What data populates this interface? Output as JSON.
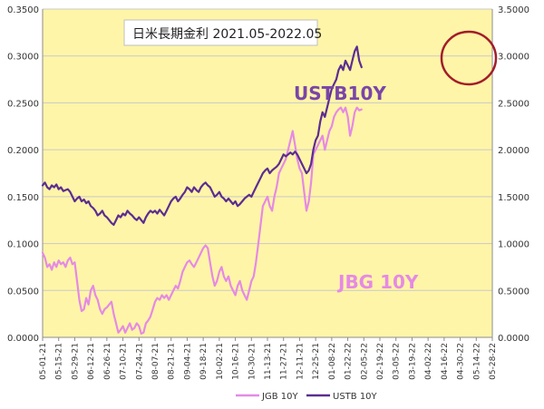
{
  "chart_data": {
    "type": "line",
    "title": "日米長期金利 2021.05-2022.05",
    "x_tick_labels": [
      "05-01-21",
      "05-15-21",
      "05-29-21",
      "06-12-21",
      "06-26-21",
      "07-10-21",
      "07-24-21",
      "08-07-21",
      "08-21-21",
      "09-04-21",
      "09-18-21",
      "10-02-21",
      "10-16-21",
      "10-30-21",
      "11-13-21",
      "11-27-21",
      "12-11-21",
      "12-25-21",
      "01-08-22",
      "01-22-22",
      "02-05-22",
      "02-19-22",
      "03-05-22",
      "03-19-22",
      "04-02-22",
      "04-16-22",
      "04-30-22",
      "05-14-22",
      "05-28-22"
    ],
    "y_left": {
      "range": [
        0,
        0.35
      ],
      "ticks": [
        "0.0000",
        "0.0500",
        "0.1000",
        "0.1500",
        "0.2000",
        "0.2500",
        "0.3000",
        "0.3500"
      ]
    },
    "y_right": {
      "range": [
        0,
        3.5
      ],
      "ticks": [
        "0.0000",
        "0.5000",
        "1.0000",
        "1.5000",
        "2.0000",
        "2.5000",
        "3.0000",
        "3.5000"
      ]
    },
    "grid": "horizontal",
    "legend": {
      "position": "bottom",
      "items": [
        "JGB 10Y",
        "USTB 10Y"
      ]
    },
    "annotations": [
      "USTB10Y",
      "JBG 10Y"
    ],
    "series": [
      {
        "name": "JGB 10Y",
        "axis": "left",
        "color": "#e58ae5",
        "points": [
          [
            0,
            0.09
          ],
          [
            2,
            0.085
          ],
          [
            4,
            0.075
          ],
          [
            6,
            0.078
          ],
          [
            8,
            0.072
          ],
          [
            10,
            0.08
          ],
          [
            12,
            0.075
          ],
          [
            14,
            0.082
          ],
          [
            16,
            0.078
          ],
          [
            18,
            0.08
          ],
          [
            20,
            0.075
          ],
          [
            22,
            0.082
          ],
          [
            24,
            0.085
          ],
          [
            26,
            0.078
          ],
          [
            28,
            0.08
          ],
          [
            30,
            0.06
          ],
          [
            32,
            0.04
          ],
          [
            34,
            0.028
          ],
          [
            36,
            0.03
          ],
          [
            38,
            0.042
          ],
          [
            40,
            0.035
          ],
          [
            42,
            0.05
          ],
          [
            44,
            0.055
          ],
          [
            46,
            0.045
          ],
          [
            48,
            0.04
          ],
          [
            50,
            0.03
          ],
          [
            52,
            0.025
          ],
          [
            54,
            0.03
          ],
          [
            56,
            0.032
          ],
          [
            58,
            0.035
          ],
          [
            60,
            0.038
          ],
          [
            62,
            0.025
          ],
          [
            64,
            0.015
          ],
          [
            66,
            0.005
          ],
          [
            68,
            0.008
          ],
          [
            70,
            0.012
          ],
          [
            72,
            0.005
          ],
          [
            74,
            0.01
          ],
          [
            76,
            0.015
          ],
          [
            78,
            0.008
          ],
          [
            80,
            0.01
          ],
          [
            82,
            0.015
          ],
          [
            84,
            0.012
          ],
          [
            86,
            0.004
          ],
          [
            88,
            0.005
          ],
          [
            90,
            0.015
          ],
          [
            92,
            0.018
          ],
          [
            94,
            0.022
          ],
          [
            96,
            0.03
          ],
          [
            98,
            0.038
          ],
          [
            100,
            0.042
          ],
          [
            102,
            0.04
          ],
          [
            104,
            0.045
          ],
          [
            106,
            0.042
          ],
          [
            108,
            0.045
          ],
          [
            110,
            0.04
          ],
          [
            112,
            0.045
          ],
          [
            114,
            0.05
          ],
          [
            116,
            0.055
          ],
          [
            118,
            0.052
          ],
          [
            120,
            0.06
          ],
          [
            122,
            0.07
          ],
          [
            124,
            0.075
          ],
          [
            126,
            0.08
          ],
          [
            128,
            0.082
          ],
          [
            130,
            0.078
          ],
          [
            132,
            0.075
          ],
          [
            134,
            0.08
          ],
          [
            136,
            0.085
          ],
          [
            138,
            0.09
          ],
          [
            140,
            0.095
          ],
          [
            142,
            0.098
          ],
          [
            144,
            0.095
          ],
          [
            146,
            0.08
          ],
          [
            148,
            0.065
          ],
          [
            150,
            0.055
          ],
          [
            152,
            0.06
          ],
          [
            154,
            0.07
          ],
          [
            156,
            0.075
          ],
          [
            158,
            0.065
          ],
          [
            160,
            0.06
          ],
          [
            162,
            0.065
          ],
          [
            164,
            0.055
          ],
          [
            166,
            0.05
          ],
          [
            168,
            0.045
          ],
          [
            170,
            0.055
          ],
          [
            172,
            0.06
          ],
          [
            174,
            0.05
          ],
          [
            176,
            0.045
          ],
          [
            178,
            0.04
          ],
          [
            180,
            0.05
          ],
          [
            182,
            0.06
          ],
          [
            184,
            0.065
          ],
          [
            186,
            0.08
          ],
          [
            188,
            0.1
          ],
          [
            190,
            0.12
          ],
          [
            192,
            0.14
          ],
          [
            194,
            0.145
          ],
          [
            196,
            0.15
          ],
          [
            198,
            0.14
          ],
          [
            200,
            0.135
          ],
          [
            202,
            0.15
          ],
          [
            204,
            0.16
          ],
          [
            206,
            0.175
          ],
          [
            208,
            0.18
          ],
          [
            210,
            0.185
          ],
          [
            212,
            0.19
          ],
          [
            214,
            0.2
          ],
          [
            216,
            0.21
          ],
          [
            218,
            0.22
          ],
          [
            220,
            0.205
          ],
          [
            222,
            0.19
          ],
          [
            224,
            0.18
          ],
          [
            226,
            0.175
          ],
          [
            228,
            0.155
          ],
          [
            230,
            0.135
          ],
          [
            232,
            0.145
          ],
          [
            234,
            0.165
          ],
          [
            236,
            0.195
          ],
          [
            238,
            0.2
          ],
          [
            240,
            0.205
          ],
          [
            242,
            0.21
          ],
          [
            244,
            0.215
          ],
          [
            246,
            0.2
          ],
          [
            248,
            0.21
          ],
          [
            250,
            0.22
          ],
          [
            252,
            0.225
          ],
          [
            254,
            0.235
          ],
          [
            256,
            0.24
          ],
          [
            258,
            0.243
          ],
          [
            260,
            0.245
          ],
          [
            262,
            0.24
          ],
          [
            264,
            0.245
          ],
          [
            266,
            0.235
          ],
          [
            268,
            0.215
          ],
          [
            270,
            0.225
          ],
          [
            272,
            0.24
          ],
          [
            274,
            0.245
          ],
          [
            276,
            0.242
          ],
          [
            278,
            0.243
          ]
        ]
      },
      {
        "name": "USTB 10Y",
        "axis": "right",
        "color": "#5c2d91",
        "points": [
          [
            0,
            1.62
          ],
          [
            2,
            1.65
          ],
          [
            4,
            1.6
          ],
          [
            6,
            1.58
          ],
          [
            8,
            1.62
          ],
          [
            10,
            1.6
          ],
          [
            12,
            1.63
          ],
          [
            14,
            1.58
          ],
          [
            16,
            1.6
          ],
          [
            18,
            1.56
          ],
          [
            20,
            1.57
          ],
          [
            22,
            1.58
          ],
          [
            24,
            1.55
          ],
          [
            26,
            1.5
          ],
          [
            28,
            1.45
          ],
          [
            30,
            1.48
          ],
          [
            32,
            1.5
          ],
          [
            34,
            1.45
          ],
          [
            36,
            1.47
          ],
          [
            38,
            1.43
          ],
          [
            40,
            1.45
          ],
          [
            42,
            1.4
          ],
          [
            44,
            1.38
          ],
          [
            46,
            1.35
          ],
          [
            48,
            1.3
          ],
          [
            50,
            1.32
          ],
          [
            52,
            1.35
          ],
          [
            54,
            1.3
          ],
          [
            56,
            1.28
          ],
          [
            58,
            1.25
          ],
          [
            60,
            1.22
          ],
          [
            62,
            1.2
          ],
          [
            64,
            1.25
          ],
          [
            66,
            1.3
          ],
          [
            68,
            1.28
          ],
          [
            70,
            1.32
          ],
          [
            72,
            1.3
          ],
          [
            74,
            1.35
          ],
          [
            76,
            1.32
          ],
          [
            78,
            1.3
          ],
          [
            80,
            1.27
          ],
          [
            82,
            1.25
          ],
          [
            84,
            1.28
          ],
          [
            86,
            1.25
          ],
          [
            88,
            1.22
          ],
          [
            90,
            1.28
          ],
          [
            92,
            1.32
          ],
          [
            94,
            1.35
          ],
          [
            96,
            1.33
          ],
          [
            98,
            1.35
          ],
          [
            100,
            1.32
          ],
          [
            102,
            1.36
          ],
          [
            104,
            1.33
          ],
          [
            106,
            1.3
          ],
          [
            108,
            1.35
          ],
          [
            110,
            1.4
          ],
          [
            112,
            1.45
          ],
          [
            114,
            1.48
          ],
          [
            116,
            1.5
          ],
          [
            118,
            1.45
          ],
          [
            120,
            1.48
          ],
          [
            122,
            1.52
          ],
          [
            124,
            1.55
          ],
          [
            126,
            1.6
          ],
          [
            128,
            1.58
          ],
          [
            130,
            1.55
          ],
          [
            132,
            1.6
          ],
          [
            134,
            1.57
          ],
          [
            136,
            1.55
          ],
          [
            138,
            1.6
          ],
          [
            140,
            1.63
          ],
          [
            142,
            1.65
          ],
          [
            144,
            1.62
          ],
          [
            146,
            1.6
          ],
          [
            148,
            1.55
          ],
          [
            150,
            1.5
          ],
          [
            152,
            1.52
          ],
          [
            154,
            1.55
          ],
          [
            156,
            1.5
          ],
          [
            158,
            1.48
          ],
          [
            160,
            1.45
          ],
          [
            162,
            1.48
          ],
          [
            164,
            1.45
          ],
          [
            166,
            1.42
          ],
          [
            168,
            1.45
          ],
          [
            170,
            1.4
          ],
          [
            172,
            1.42
          ],
          [
            174,
            1.45
          ],
          [
            176,
            1.48
          ],
          [
            178,
            1.5
          ],
          [
            180,
            1.52
          ],
          [
            182,
            1.5
          ],
          [
            184,
            1.55
          ],
          [
            186,
            1.6
          ],
          [
            188,
            1.65
          ],
          [
            190,
            1.7
          ],
          [
            192,
            1.75
          ],
          [
            194,
            1.78
          ],
          [
            196,
            1.8
          ],
          [
            198,
            1.75
          ],
          [
            200,
            1.78
          ],
          [
            202,
            1.8
          ],
          [
            204,
            1.82
          ],
          [
            206,
            1.85
          ],
          [
            208,
            1.9
          ],
          [
            210,
            1.95
          ],
          [
            212,
            1.93
          ],
          [
            214,
            1.95
          ],
          [
            216,
            1.97
          ],
          [
            218,
            1.95
          ],
          [
            220,
            1.98
          ],
          [
            222,
            1.95
          ],
          [
            224,
            1.9
          ],
          [
            226,
            1.85
          ],
          [
            228,
            1.8
          ],
          [
            230,
            1.75
          ],
          [
            232,
            1.78
          ],
          [
            234,
            1.85
          ],
          [
            236,
            2.0
          ],
          [
            238,
            2.1
          ],
          [
            240,
            2.15
          ],
          [
            242,
            2.3
          ],
          [
            244,
            2.4
          ],
          [
            246,
            2.35
          ],
          [
            248,
            2.45
          ],
          [
            250,
            2.55
          ],
          [
            252,
            2.65
          ],
          [
            254,
            2.7
          ],
          [
            256,
            2.75
          ],
          [
            258,
            2.85
          ],
          [
            260,
            2.9
          ],
          [
            262,
            2.85
          ],
          [
            264,
            2.95
          ],
          [
            266,
            2.9
          ],
          [
            268,
            2.85
          ],
          [
            270,
            2.95
          ],
          [
            272,
            3.05
          ],
          [
            274,
            3.1
          ],
          [
            276,
            2.95
          ],
          [
            278,
            2.88
          ]
        ]
      }
    ]
  }
}
